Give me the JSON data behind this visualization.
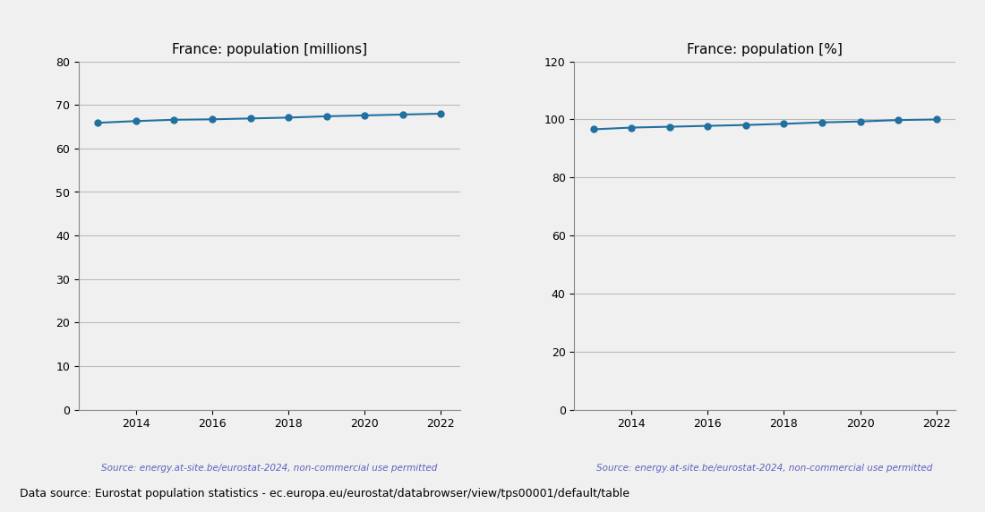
{
  "years": [
    2013,
    2014,
    2015,
    2016,
    2017,
    2018,
    2019,
    2020,
    2021,
    2022
  ],
  "population_millions": [
    65.9,
    66.3,
    66.6,
    66.7,
    66.9,
    67.1,
    67.4,
    67.6,
    67.8,
    68.0
  ],
  "population_percent": [
    96.6,
    97.2,
    97.5,
    97.8,
    98.1,
    98.5,
    99.0,
    99.3,
    99.8,
    100.0
  ],
  "title_millions": "France: population [millions]",
  "title_percent": "France: population [%]",
  "ylim_millions": [
    0,
    80
  ],
  "ylim_percent": [
    0,
    120
  ],
  "yticks_millions": [
    0,
    10,
    20,
    30,
    40,
    50,
    60,
    70,
    80
  ],
  "yticks_percent": [
    0,
    20,
    40,
    60,
    80,
    100,
    120
  ],
  "line_color": "#2070a0",
  "marker": "o",
  "marker_size": 5,
  "source_text": "Source: energy.at-site.be/eurostat-2024, non-commercial use permitted",
  "source_color": "#6060c0",
  "footer_text": "Data source: Eurostat population statistics - ec.europa.eu/eurostat/databrowser/view/tps00001/default/table",
  "footer_color": "#000000",
  "grid_color": "#bbbbbb",
  "bg_color": "#f0f0f0",
  "axes_bg_color": "#f0f0f0"
}
